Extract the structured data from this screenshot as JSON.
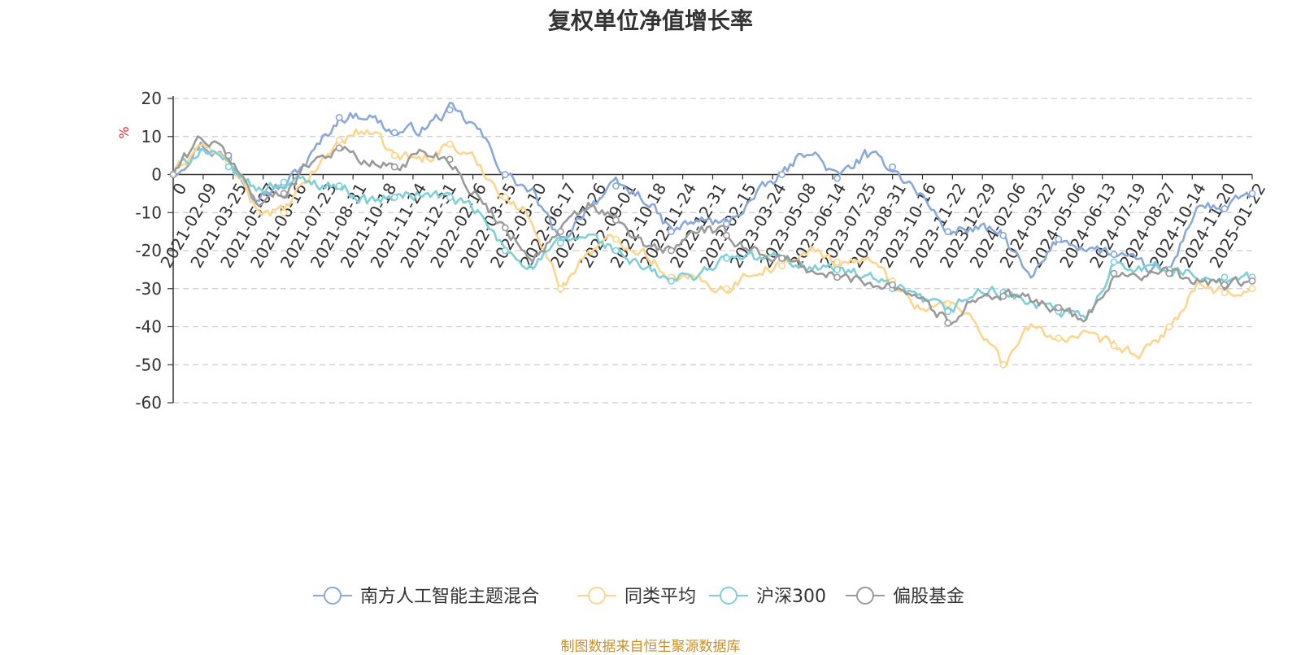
{
  "chart_data": {
    "type": "line",
    "title": "复权单位净值增长率",
    "ylabel": "%",
    "xlabel": "",
    "ylim": [
      -60,
      20
    ],
    "yticks": [
      20,
      10,
      0,
      -10,
      -20,
      -30,
      -40,
      -50,
      -60
    ],
    "grid": true,
    "legend_position": "bottom",
    "x_tick_labels": [
      "0",
      "2021-02-09",
      "2021-03-25",
      "2021-05-07",
      "2021-06-16",
      "2021-07-23",
      "2021-08-31",
      "2021-10-18",
      "2021-11-24",
      "2021-12-31",
      "2022-02-16",
      "2022-03-25",
      "2022-05-10",
      "2022-06-17",
      "2022-07-26",
      "2022-09-01",
      "2022-10-18",
      "2022-11-24",
      "2022-12-31",
      "2023-02-15",
      "2023-03-24",
      "2023-05-08",
      "2023-06-14",
      "2023-07-25",
      "2023-08-31",
      "2023-10-16",
      "2023-11-22",
      "2023-12-29",
      "2024-02-06",
      "2024-03-22",
      "2024-05-06",
      "2024-06-13",
      "2024-07-19",
      "2024-08-27",
      "2024-10-14",
      "2024-11-20",
      "2025-01-22"
    ],
    "series": [
      {
        "name": "南方人工智能主题混合",
        "color": "#8aa9d8",
        "values": [
          0,
          8,
          4,
          -5,
          -3,
          5,
          15,
          16,
          11,
          12,
          17,
          12,
          0,
          -5,
          -18,
          -8,
          -3,
          -6,
          -15,
          -12,
          -13,
          -6,
          0,
          7,
          -1,
          5,
          2,
          -5,
          -15,
          -14,
          -16,
          -28,
          -17,
          -19,
          -21,
          -24,
          -26,
          -8,
          -9,
          -5
        ]
      },
      {
        "name": "同类平均",
        "color": "#fcd68e",
        "values": [
          0,
          8,
          3,
          -9,
          -10,
          0,
          9,
          12,
          5,
          4,
          8,
          3,
          -6,
          -12,
          -30,
          -20,
          -17,
          -20,
          -27,
          -28,
          -30,
          -25,
          -24,
          -20,
          -23,
          -22,
          -28,
          -35,
          -34,
          -38,
          -50,
          -40,
          -43,
          -43,
          -45,
          -48,
          -40,
          -30,
          -31,
          -30
        ]
      },
      {
        "name": "沪深300",
        "color": "#7fd0d6",
        "values": [
          0,
          7,
          2,
          -4,
          -2,
          -2,
          -3,
          -7,
          -6,
          -5,
          -6,
          -10,
          -20,
          -24,
          -18,
          -16,
          -20,
          -25,
          -28,
          -26,
          -22,
          -22,
          -22,
          -24,
          -25,
          -27,
          -30,
          -33,
          -36,
          -31,
          -31,
          -34,
          -36,
          -38,
          -23,
          -24,
          -25,
          -27,
          -27,
          -27
        ]
      },
      {
        "name": "偏股基金",
        "color": "#9a9a9a",
        "values": [
          0,
          10,
          5,
          -7,
          -5,
          4,
          7,
          3,
          2,
          6,
          4,
          -6,
          -14,
          -22,
          -15,
          -8,
          -12,
          -19,
          -20,
          -14,
          -16,
          -20,
          -22,
          -25,
          -27,
          -28,
          -29,
          -32,
          -39,
          -32,
          -32,
          -33,
          -35,
          -39,
          -26,
          -26,
          -26,
          -28,
          -29,
          -28
        ]
      }
    ]
  },
  "source_note": "制图数据来自恒生聚源数据库"
}
